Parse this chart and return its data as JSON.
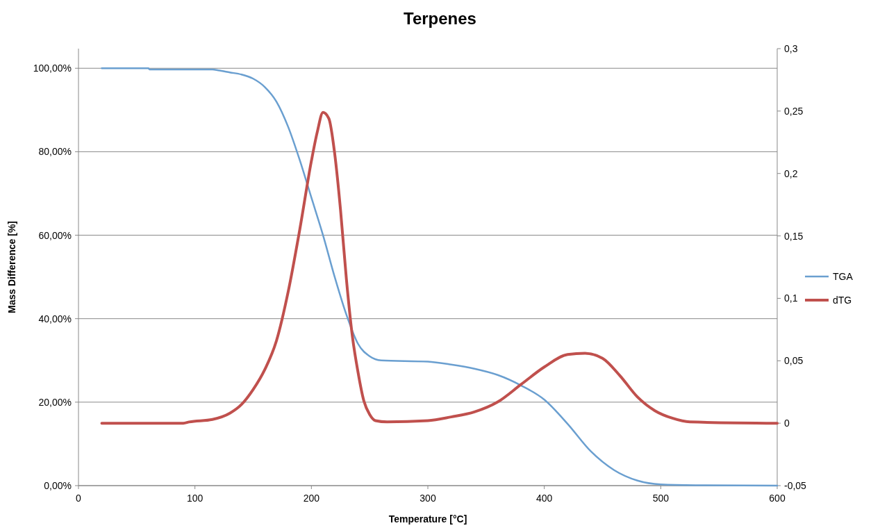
{
  "chart_data": {
    "type": "line",
    "title": "Terpenes",
    "xlabel": "Temperature [°C]",
    "ylabel": "Mass Difference [%]",
    "xlim": [
      0,
      600
    ],
    "xticks": [
      0,
      100,
      200,
      300,
      400,
      500,
      600
    ],
    "ylim": [
      0,
      1.047
    ],
    "yticks": [
      {
        "value": 0,
        "label": "0,00%"
      },
      {
        "value": 0.2,
        "label": "20,00%"
      },
      {
        "value": 0.4,
        "label": "40,00%"
      },
      {
        "value": 0.6,
        "label": "60,00%"
      },
      {
        "value": 0.8,
        "label": "80,00%"
      },
      {
        "value": 1,
        "label": "100,00%"
      }
    ],
    "y2lim": [
      -0.05,
      0.3
    ],
    "y2ticks": [
      {
        "value": -0.05,
        "label": "-0,05"
      },
      {
        "value": 0,
        "label": "0"
      },
      {
        "value": 0.05,
        "label": "0,05"
      },
      {
        "value": 0.1,
        "label": "0,1"
      },
      {
        "value": 0.15,
        "label": "0,15"
      },
      {
        "value": 0.2,
        "label": "0,2"
      },
      {
        "value": 0.25,
        "label": "0,25"
      },
      {
        "value": 0.3,
        "label": "0,3"
      }
    ],
    "grid": "y",
    "legend": "right",
    "marker": "none",
    "line_style": "solid",
    "series": [
      {
        "name": "TGA",
        "color": "#6a9fd0",
        "x": [
          20,
          60,
          61,
          115,
          120,
          130,
          140,
          150,
          160,
          170,
          180,
          190,
          200,
          210,
          220,
          230,
          240,
          250,
          260,
          300,
          320,
          340,
          360,
          380,
          400,
          420,
          440,
          460,
          480,
          500,
          530,
          600
        ],
        "values": [
          1.0,
          1.0,
          0.997,
          0.997,
          0.995,
          0.99,
          0.985,
          0.975,
          0.955,
          0.92,
          0.86,
          0.78,
          0.69,
          0.6,
          0.5,
          0.41,
          0.34,
          0.31,
          0.3,
          0.297,
          0.29,
          0.28,
          0.265,
          0.24,
          0.206,
          0.148,
          0.082,
          0.037,
          0.012,
          0.003,
          0.001,
          0.0
        ]
      },
      {
        "name": "dTG",
        "color": "#c0504d",
        "axis": "y2",
        "x": [
          20,
          90,
          95,
          115,
          130,
          140,
          150,
          160,
          170,
          180,
          190,
          200,
          205,
          210,
          215,
          220,
          225,
          230,
          235,
          240,
          245,
          250,
          255,
          265,
          300,
          320,
          340,
          360,
          380,
          400,
          420,
          435,
          450,
          465,
          480,
          495,
          510,
          525,
          600
        ],
        "values": [
          0,
          0,
          0.001,
          0.003,
          0.008,
          0.015,
          0.027,
          0.043,
          0.066,
          0.105,
          0.155,
          0.21,
          0.233,
          0.249,
          0.244,
          0.216,
          0.171,
          0.116,
          0.071,
          0.041,
          0.018,
          0.007,
          0.002,
          0.001,
          0.002,
          0.005,
          0.009,
          0.017,
          0.031,
          0.045,
          0.055,
          0.056,
          0.052,
          0.038,
          0.021,
          0.01,
          0.004,
          0.001,
          0
        ]
      }
    ]
  }
}
